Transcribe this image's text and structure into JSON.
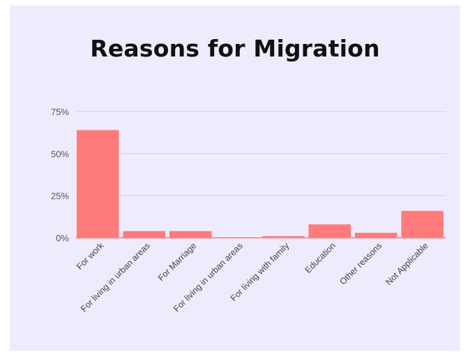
{
  "chart_data": {
    "type": "bar",
    "title": "Reasons for Migration",
    "categories": [
      "For work",
      "For living in urban  areas",
      "For Marriage",
      "For living in urban areas",
      "For living with family",
      "Education",
      "Other reasons",
      "Not Applicable"
    ],
    "values": [
      64,
      4,
      4,
      0,
      1,
      8,
      3,
      16
    ],
    "ylim": [
      0,
      75
    ],
    "yticks": [
      0,
      25,
      50,
      75
    ],
    "ytick_labels": [
      "0%",
      "25%",
      "50%",
      "75%"
    ],
    "xlabel": "",
    "ylabel": "",
    "grid": true,
    "bar_color": "#ff7a7a"
  }
}
